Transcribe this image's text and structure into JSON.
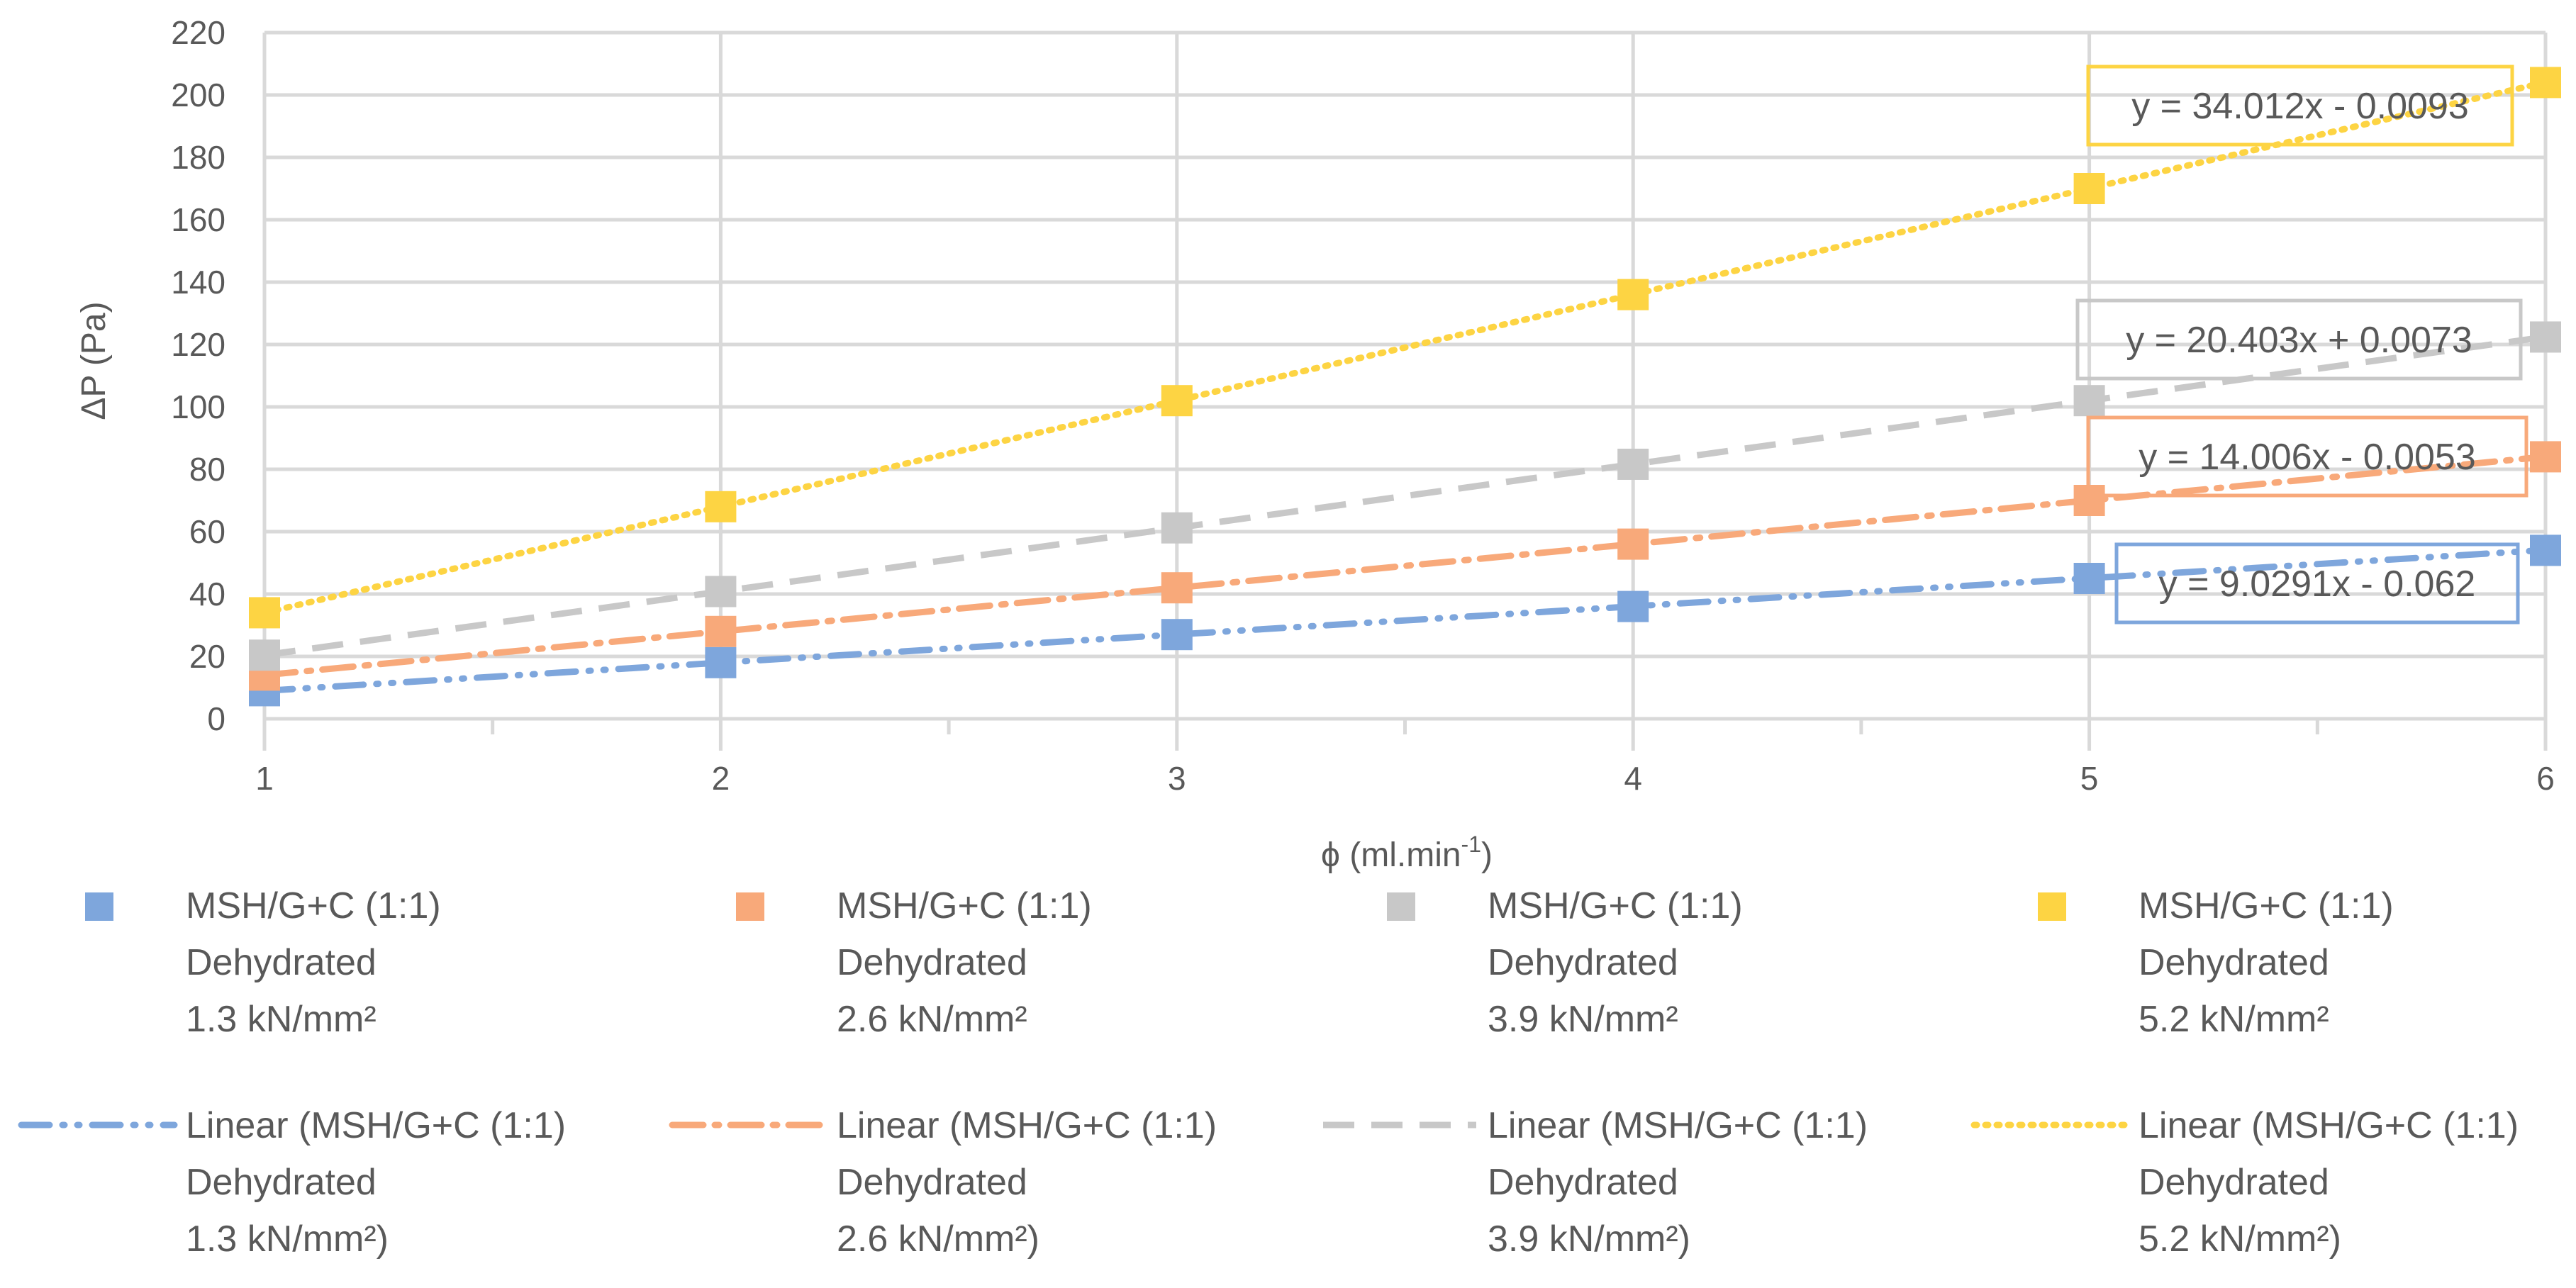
{
  "chart_data": {
    "type": "scatter",
    "title": "",
    "xlabel": "ϕ (ml.min⁻¹)",
    "xlabel_main": "ϕ (ml.min",
    "xlabel_sup": "-1",
    "xlabel_close": ")",
    "ylabel": "ΔP (Pa)",
    "xlim": [
      1,
      6
    ],
    "ylim": [
      0,
      220
    ],
    "x_ticks": [
      "1",
      "2",
      "3",
      "4",
      "5",
      "6"
    ],
    "y_ticks": [
      "0",
      "20",
      "40",
      "60",
      "80",
      "100",
      "120",
      "140",
      "160",
      "180",
      "200",
      "220"
    ],
    "x_minor_ticks": [
      1.5,
      2.5,
      3.5,
      4.5,
      5.5
    ],
    "grid": true,
    "series": [
      {
        "name": "MSH/G+C (1:1) Dehydrated 1.3 kN/mm²",
        "legend_lines": [
          "MSH/G+C (1:1)",
          "Dehydrated",
          "1.3 kN/mm²"
        ],
        "trend_lines": [
          "Linear (MSH/G+C (1:1)",
          "Dehydrated",
          "1.3 kN/mm²)"
        ],
        "color": "#7ea6dc",
        "trend_style": "dash-dot-dot",
        "x": [
          1,
          2,
          3,
          4,
          5,
          6
        ],
        "y": [
          9,
          18,
          27,
          36,
          45,
          54
        ],
        "slope": 9.0291,
        "intercept": -0.062,
        "equation": "y = 9.0291x - 0.062"
      },
      {
        "name": "MSH/G+C (1:1) Dehydrated 2.6 kN/mm²",
        "legend_lines": [
          "MSH/G+C (1:1)",
          "Dehydrated",
          "2.6 kN/mm²"
        ],
        "trend_lines": [
          "Linear (MSH/G+C (1:1)",
          "Dehydrated",
          "2.6 kN/mm²)"
        ],
        "color": "#f8a97a",
        "trend_style": "dash-dot",
        "x": [
          1,
          2,
          3,
          4,
          5,
          6
        ],
        "y": [
          14,
          28,
          42,
          56,
          70,
          84
        ],
        "slope": 14.006,
        "intercept": -0.0053,
        "equation": "y = 14.006x - 0.0053"
      },
      {
        "name": "MSH/G+C (1:1) Dehydrated 3.9 kN/mm²",
        "legend_lines": [
          "MSH/G+C (1:1)",
          "Dehydrated",
          "3.9 kN/mm²"
        ],
        "trend_lines": [
          "Linear (MSH/G+C (1:1)",
          "Dehydrated",
          "3.9 kN/mm²)"
        ],
        "color": "#c8c8c8",
        "trend_style": "dash",
        "x": [
          1,
          2,
          3,
          4,
          5,
          6
        ],
        "y": [
          20.4,
          40.8,
          61.2,
          81.6,
          102,
          122.4
        ],
        "slope": 20.403,
        "intercept": 0.0073,
        "equation": "y = 20.403x + 0.0073"
      },
      {
        "name": "MSH/G+C (1:1) Dehydrated 5.2 kN/mm²",
        "legend_lines": [
          "MSH/G+C (1:1)",
          "Dehydrated",
          "5.2 kN/mm²"
        ],
        "trend_lines": [
          "Linear (MSH/G+C (1:1)",
          "Dehydrated",
          "5.2 kN/mm²)"
        ],
        "color": "#fdd443",
        "trend_style": "dot",
        "x": [
          1,
          2,
          3,
          4,
          5,
          6
        ],
        "y": [
          34,
          68,
          102,
          136,
          170,
          204
        ],
        "slope": 34.012,
        "intercept": -0.0093,
        "equation": "y = 34.012x - 0.0093"
      }
    ]
  }
}
